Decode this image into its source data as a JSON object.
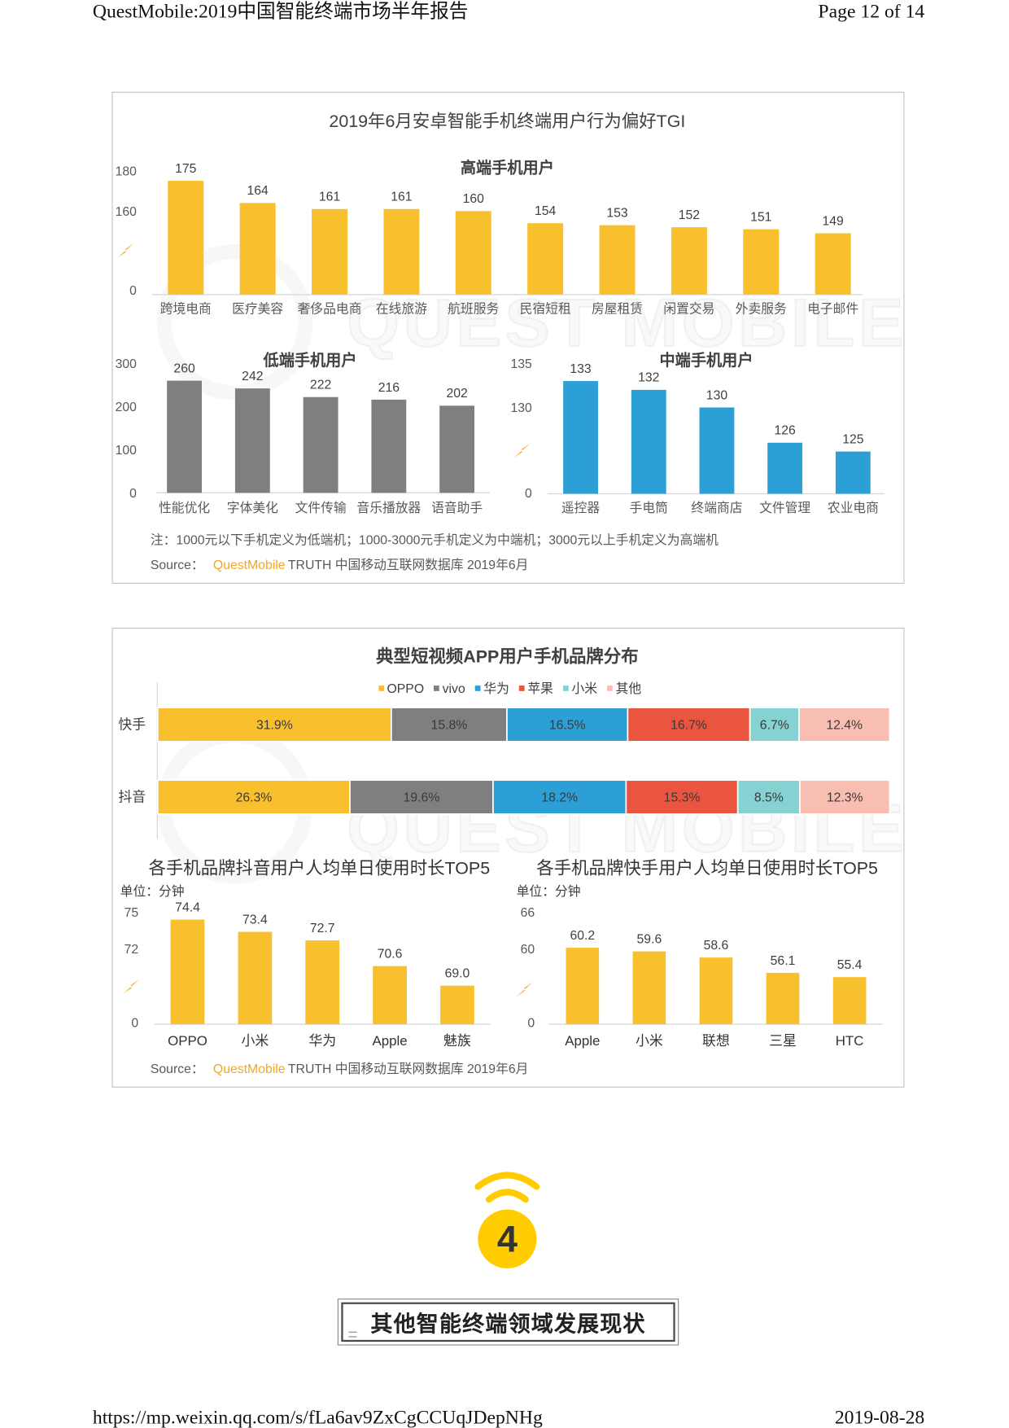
{
  "header": {
    "title": "QuestMobile:2019中国智能终端市场半年报告",
    "page": "Page 12 of 14"
  },
  "panel1": {
    "title": "2019年6月安卓智能手机终端用户行为偏好TGI",
    "note": "注：1000元以下手机定义为低端机；1000-3000元手机定义为中端机；3000元以上手机定义为高端机",
    "source": {
      "prefix": "Source：",
      "brand": "QuestMobile",
      "rest": "TRUTH 中国移动互联网数据库 2019年6月"
    }
  },
  "panel2": {
    "source": {
      "prefix": "Source：",
      "brand": "QuestMobile",
      "rest": "TRUTH 中国移动互联网数据库 2019年6月"
    }
  },
  "watermark": "QUEST MOBILE",
  "section": {
    "number": "4",
    "title": "其他智能终端领域发展现状"
  },
  "footer": {
    "url": "https://mp.weixin.qq.com/s/fLa6av9ZxCgCCUqJDepNHg",
    "date": "2019-08-28"
  },
  "colors": {
    "brand_orange": "#F5A623",
    "break_mark": "#F6A623",
    "section_icon": "#FFCC00",
    "panel_border": "#C2C2C2"
  },
  "icons": {
    "axis_break": "axis-break-icon",
    "section": "wifi-signal-icon"
  },
  "chart_data": [
    {
      "type": "bar",
      "title": "高端手机用户",
      "categories": [
        "跨境电商",
        "医疗美容",
        "奢侈品电商",
        "在线旅游",
        "航班服务",
        "民宿短租",
        "房屋租赁",
        "闲置交易",
        "外卖服务",
        "电子邮件"
      ],
      "values": [
        175,
        164,
        161,
        161,
        160,
        154,
        153,
        152,
        151,
        149
      ],
      "yticks": [
        0,
        160,
        180
      ],
      "axis_break": true,
      "color": "#F9C02D"
    },
    {
      "type": "bar",
      "title": "低端手机用户",
      "categories": [
        "性能优化",
        "字体美化",
        "文件传输",
        "音乐播放器",
        "语音助手"
      ],
      "values": [
        260,
        242,
        222,
        216,
        202
      ],
      "yticks": [
        0,
        100,
        200,
        300
      ],
      "ylim": [
        0,
        300
      ],
      "color": "#7F7F7F"
    },
    {
      "type": "bar",
      "title": "中端手机用户",
      "categories": [
        "遥控器",
        "手电筒",
        "终端商店",
        "文件管理",
        "农业电商"
      ],
      "values": [
        133,
        132,
        130,
        126,
        125
      ],
      "yticks": [
        0,
        130,
        135
      ],
      "axis_break": true,
      "color": "#2C9FD6"
    },
    {
      "type": "bar",
      "orientation": "horizontal",
      "stacked": true,
      "title": "典型短视频APP用户手机品牌分布",
      "categories": [
        "快手",
        "抖音"
      ],
      "unit": "%",
      "legend": "top",
      "series": [
        {
          "name": "OPPO",
          "color": "#F9C02D",
          "values": [
            31.9,
            26.3
          ]
        },
        {
          "name": "vivo",
          "color": "#7F7F7F",
          "values": [
            15.8,
            19.6
          ]
        },
        {
          "name": "华为",
          "color": "#2C9FD6",
          "values": [
            16.5,
            18.2
          ]
        },
        {
          "name": "苹果",
          "color": "#E9553F",
          "values": [
            16.7,
            15.3
          ]
        },
        {
          "name": "小米",
          "color": "#86D1D1",
          "values": [
            6.7,
            8.5
          ]
        },
        {
          "name": "其他",
          "color": "#F8BEB1",
          "values": [
            12.4,
            12.3
          ]
        }
      ]
    },
    {
      "type": "bar",
      "title": "各手机品牌抖音用户人均单日使用时长TOP5",
      "unit_label": "单位：分钟",
      "categories": [
        "OPPO",
        "小米",
        "华为",
        "Apple",
        "魅族"
      ],
      "values": [
        74.4,
        73.4,
        72.7,
        70.6,
        69.0
      ],
      "yticks": [
        0,
        72,
        75
      ],
      "axis_break": true,
      "color": "#F9C02D"
    },
    {
      "type": "bar",
      "title": "各手机品牌快手用户人均单日使用时长TOP5",
      "unit_label": "单位：分钟",
      "categories": [
        "Apple",
        "小米",
        "联想",
        "三星",
        "HTC"
      ],
      "values": [
        60.2,
        59.6,
        58.6,
        56.1,
        55.4
      ],
      "yticks": [
        0,
        60,
        66
      ],
      "axis_break": true,
      "color": "#F9C02D"
    }
  ]
}
